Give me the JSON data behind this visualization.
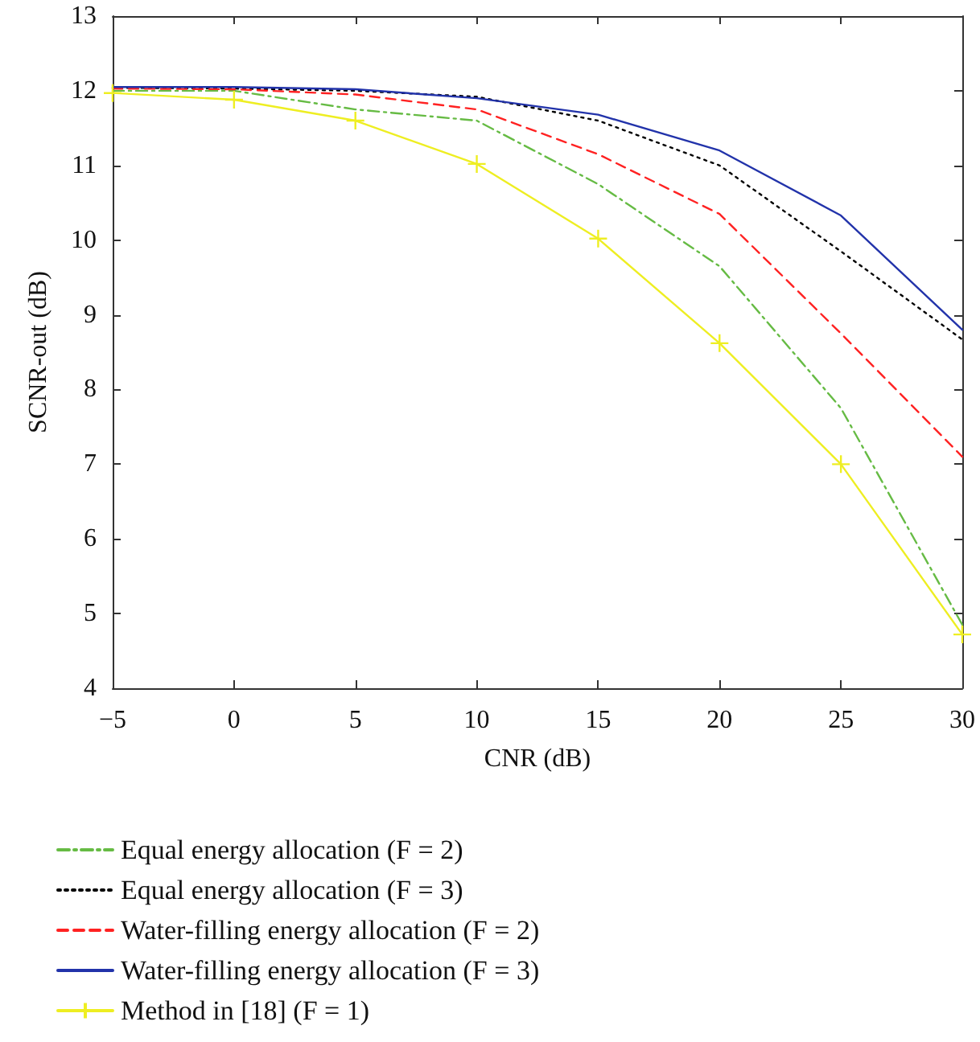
{
  "chart_data": {
    "type": "line",
    "xlabel": "CNR (dB)",
    "ylabel": "SCNR-out (dB)",
    "x": [
      -5,
      0,
      5,
      10,
      15,
      20,
      25,
      30
    ],
    "xlim": [
      -5,
      30
    ],
    "xticks": [
      {
        "value": -5,
        "label": "−5"
      },
      0,
      5,
      10,
      15,
      20,
      25,
      30
    ],
    "ylim": [
      4,
      13
    ],
    "yticks": [
      4,
      5,
      6,
      7,
      8,
      9,
      10,
      11,
      12,
      13
    ],
    "grid": false,
    "legend": "bottom left",
    "series": [
      {
        "name": "Equal energy allocation (F = 2)",
        "color": "#66bb44",
        "line_style": "dashdot",
        "marker": "none",
        "values": [
          12.0,
          12.0,
          11.75,
          11.6,
          10.75,
          9.65,
          7.75,
          4.85
        ]
      },
      {
        "name": "Equal energy allocation (F = 3)",
        "color": "#000000",
        "line_style": "dotted",
        "marker": "none",
        "values": [
          12.04,
          12.03,
          12.0,
          11.92,
          11.6,
          11.0,
          9.85,
          8.67
        ]
      },
      {
        "name": "Water-filling energy allocation (F = 2)",
        "color": "#ff2222",
        "line_style": "dashed",
        "marker": "none",
        "values": [
          12.03,
          12.02,
          11.95,
          11.75,
          11.15,
          10.35,
          8.75,
          7.1
        ]
      },
      {
        "name": "Water-filling energy allocation (F = 3)",
        "color": "#2233aa",
        "line_style": "solid",
        "marker": "none",
        "values": [
          12.05,
          12.05,
          12.02,
          11.9,
          11.68,
          11.2,
          10.33,
          8.8
        ]
      },
      {
        "name": "Method in [18] (F = 1)",
        "color": "#eeee22",
        "line_style": "solid",
        "marker": "cross",
        "values": [
          11.97,
          11.88,
          11.6,
          11.02,
          10.02,
          8.62,
          7.0,
          4.72
        ]
      }
    ]
  }
}
